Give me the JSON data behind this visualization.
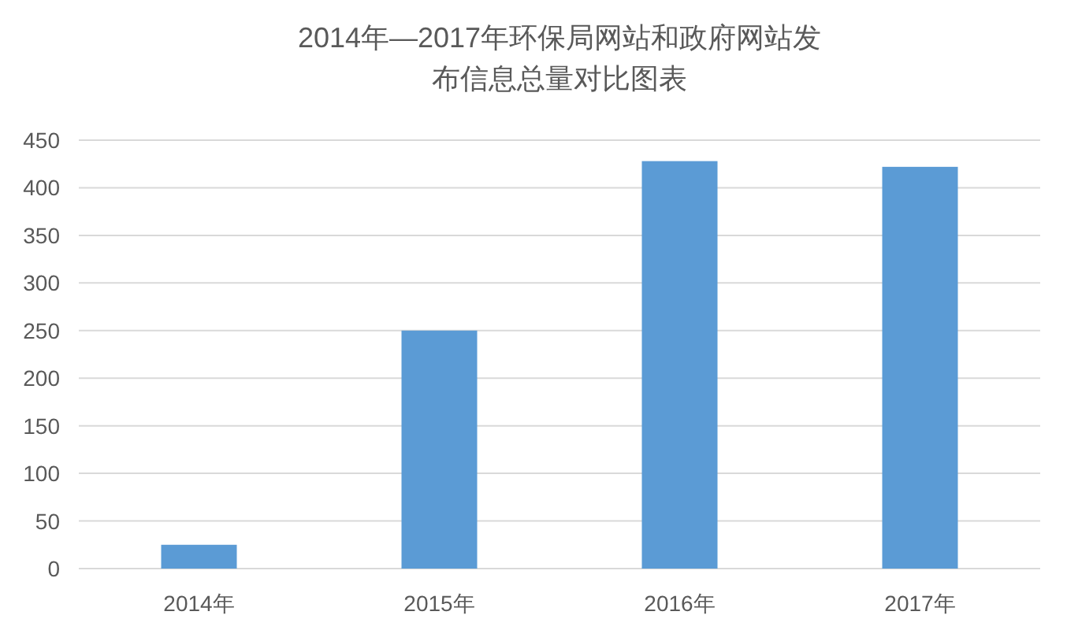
{
  "chart_data": {
    "type": "bar",
    "title": "2014年—2017年环保局网站和政府网站发布信息总量对比图表",
    "categories": [
      "2014年",
      "2015年",
      "2016年",
      "2017年"
    ],
    "values": [
      25,
      250,
      428,
      422
    ],
    "color": "#5b9bd5",
    "ylim": [
      0,
      450
    ],
    "yticks": [
      0,
      50,
      100,
      150,
      200,
      250,
      300,
      350,
      400,
      450
    ],
    "grid": "y"
  }
}
